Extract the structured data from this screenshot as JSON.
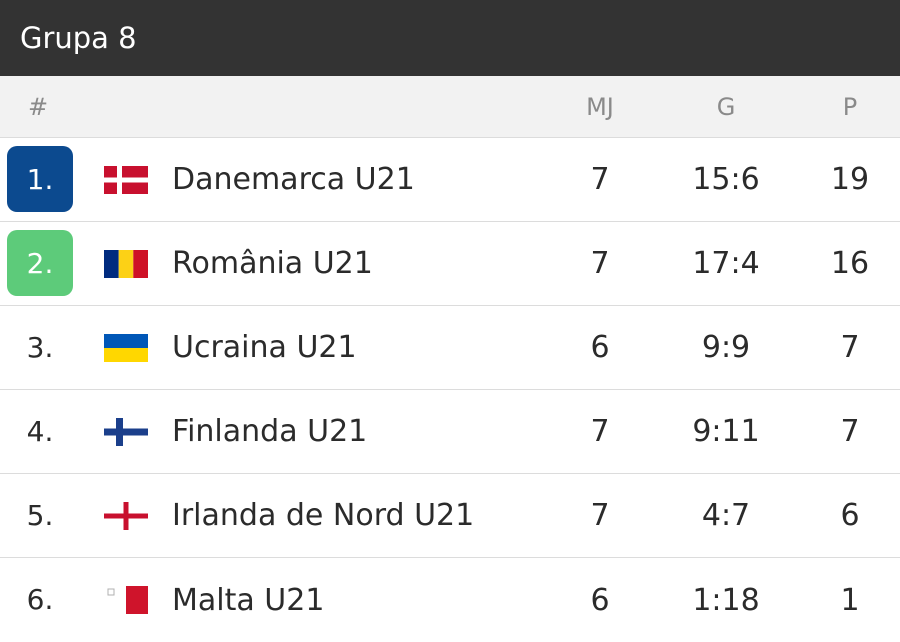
{
  "header": {
    "title": "Grupa 8"
  },
  "columns": {
    "rank": "#",
    "played": "MJ",
    "goals": "G",
    "points": "P"
  },
  "colors": {
    "rank1": "#0c4a8f",
    "rank2": "#5dcb7a"
  },
  "rows": [
    {
      "rank": "1.",
      "flag": "denmark-flag-icon",
      "team": "Danemarca U21",
      "played": "7",
      "goals": "15:6",
      "points": "19",
      "badge": "rank1"
    },
    {
      "rank": "2.",
      "flag": "romania-flag-icon",
      "team": "România U21",
      "played": "7",
      "goals": "17:4",
      "points": "16",
      "badge": "rank2"
    },
    {
      "rank": "3.",
      "flag": "ukraine-flag-icon",
      "team": "Ucraina U21",
      "played": "6",
      "goals": "9:9",
      "points": "7"
    },
    {
      "rank": "4.",
      "flag": "finland-flag-icon",
      "team": "Finlanda U21",
      "played": "7",
      "goals": "9:11",
      "points": "7"
    },
    {
      "rank": "5.",
      "flag": "northern-ireland-flag-icon",
      "team": "Irlanda de Nord U21",
      "played": "7",
      "goals": "4:7",
      "points": "6"
    },
    {
      "rank": "6.",
      "flag": "malta-flag-icon",
      "team": "Malta U21",
      "played": "6",
      "goals": "1:18",
      "points": "1"
    }
  ]
}
